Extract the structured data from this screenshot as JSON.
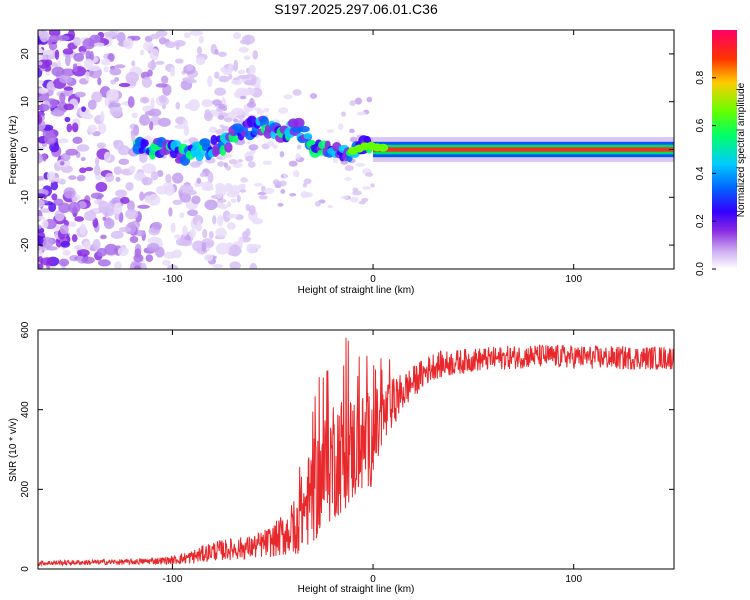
{
  "title": "S197.2025.297.06.01.C36",
  "chart_data": [
    {
      "type": "heatmap",
      "title": "S197.2025.297.06.01.C36",
      "xlabel": "Height of straight line (km)",
      "ylabel": "Frequency (Hz)",
      "xlim": [
        -167,
        150
      ],
      "ylim": [
        -25,
        25
      ],
      "xticks": [
        -100,
        0,
        100
      ],
      "yticks": [
        -20,
        -10,
        0,
        10,
        20
      ],
      "colorbar": {
        "label": "Normalized spectral amplitude",
        "range": [
          0,
          1
        ],
        "ticks": [
          0.0,
          0.2,
          0.4,
          0.6,
          0.8
        ],
        "colors": [
          "#ffffff",
          "#c9a7f0",
          "#8a2be2",
          "#3300ff",
          "#0066ff",
          "#00ccff",
          "#00ff66",
          "#66ff00",
          "#ffcc00",
          "#ff3300",
          "#ff0066"
        ]
      },
      "ridge": {
        "x": [
          -115,
          -105,
          -95,
          -85,
          -75,
          -65,
          -55,
          -45,
          -38,
          -30,
          -22,
          -15,
          -8,
          -2,
          0,
          20,
          60,
          100,
          140,
          150
        ],
        "freq": [
          1,
          0,
          -1,
          0,
          1,
          4,
          5,
          3,
          5,
          1,
          0,
          -1,
          0,
          1,
          0.5,
          0,
          0,
          0,
          0,
          0
        ]
      }
    },
    {
      "type": "line",
      "xlabel": "Height of straight line (km)",
      "ylabel": "SNR (10 * v/v)",
      "xlim": [
        -167,
        150
      ],
      "ylim": [
        0,
        600
      ],
      "xticks": [
        -100,
        0,
        100
      ],
      "yticks": [
        0,
        200,
        400,
        600
      ],
      "series": [
        {
          "name": "SNR",
          "color": "#e8282b",
          "envelope": {
            "x": [
              -167,
              -120,
              -100,
              -90,
              -80,
              -60,
              -50,
              -40,
              -30,
              -20,
              -10,
              0,
              10,
              20,
              30,
              50,
              80,
              120,
              150
            ],
            "mean": [
              15,
              18,
              22,
              30,
              45,
              55,
              70,
              100,
              190,
              280,
              300,
              330,
              420,
              470,
              510,
              525,
              535,
              530,
              530
            ],
            "spread": [
              6,
              7,
              10,
              18,
              25,
              30,
              40,
              70,
              130,
              160,
              140,
              120,
              60,
              40,
              35,
              30,
              30,
              30,
              30
            ]
          }
        }
      ]
    }
  ]
}
